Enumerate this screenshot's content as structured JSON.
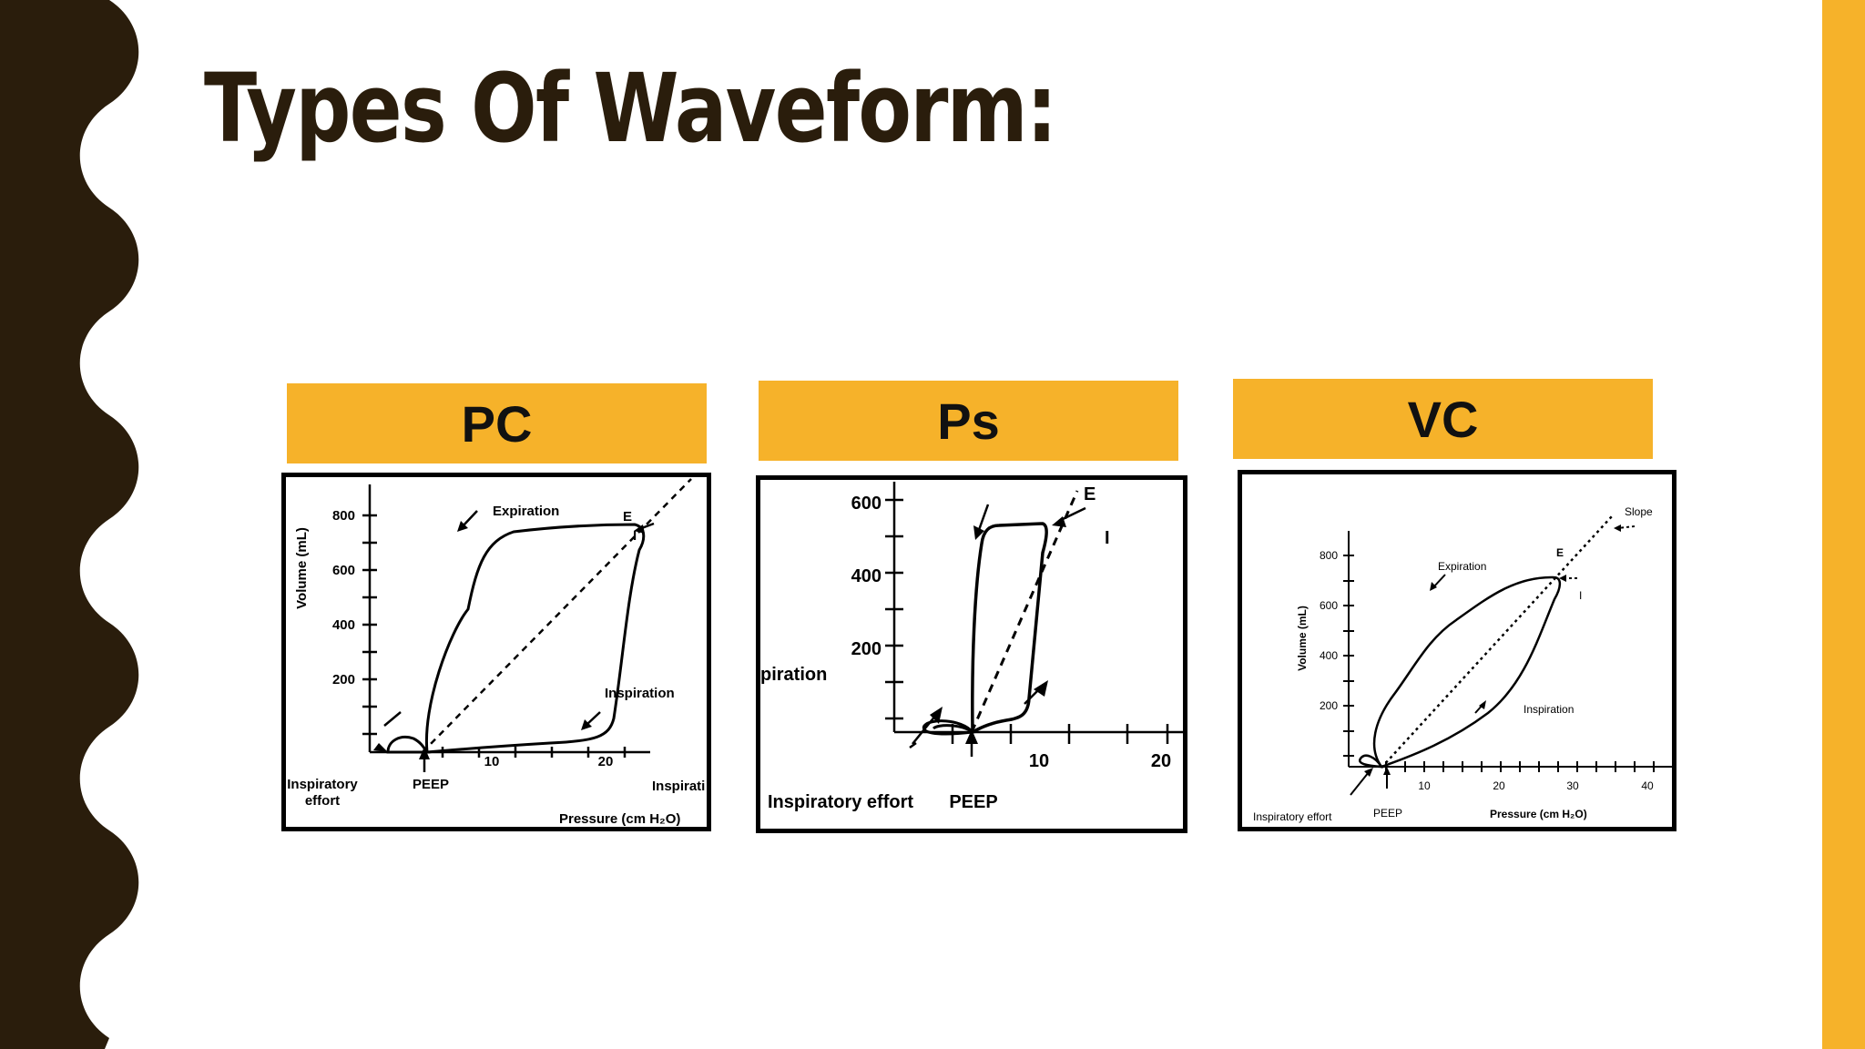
{
  "slide": {
    "title": "Types Of Waveform:",
    "colors": {
      "dark": "#2a1d0c",
      "accent": "#f6b22a"
    }
  },
  "panels": [
    {
      "label": "PC",
      "ticks_x": [
        "10",
        "20"
      ],
      "ticks_y": [
        "800",
        "600",
        "400",
        "200"
      ],
      "y_axis_label": "Volume (mL)",
      "x_axis_label": "Pressure (cm H₂O)",
      "annotations": {
        "expiration": "Expiration",
        "inspiration": "Inspiration",
        "inspiration_cut": "Inspirati",
        "effort_line1": "Inspiratory",
        "effort_line2": "effort",
        "peep": "PEEP",
        "e": "E",
        "i": "I"
      }
    },
    {
      "label": "Ps",
      "ticks_x": [
        "10",
        "20"
      ],
      "ticks_y": [
        "600",
        "400",
        "200"
      ],
      "annotations": {
        "expiration_cut": "piration",
        "effort": "Inspiratory effort",
        "peep": "PEEP",
        "e": "E",
        "i": "I"
      }
    },
    {
      "label": "VC",
      "ticks_x": [
        "10",
        "20",
        "30",
        "40"
      ],
      "ticks_y": [
        "800",
        "600",
        "400",
        "200"
      ],
      "y_axis_label": "Volume (mL)",
      "x_axis_label": "Pressure (cm H₂O)",
      "annotations": {
        "slope": "Slope",
        "expiration": "Expiration",
        "inspiration": "Inspiration",
        "effort": "Inspiratory effort",
        "peep": "PEEP",
        "e": "E",
        "i": "I"
      }
    }
  ]
}
